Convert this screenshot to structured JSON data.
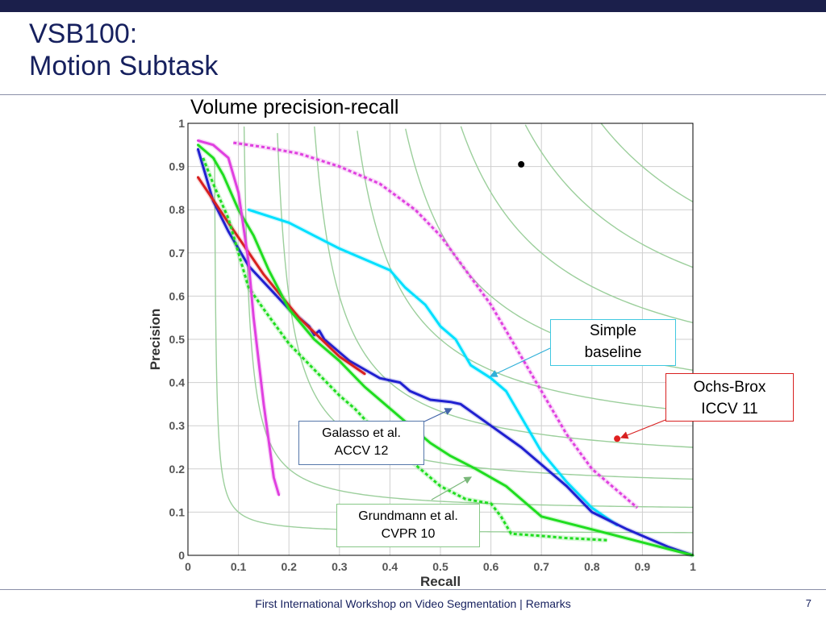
{
  "slide": {
    "title_line1": "VSB100:",
    "title_line2": "Motion Subtask",
    "footer_text": "First International Workshop on Video Segmentation |  Remarks",
    "page_number": "7",
    "colors": {
      "title": "#16205e",
      "topbar": "#1b1f4b"
    }
  },
  "chart_data": {
    "type": "line",
    "title": "Volume precision-recall",
    "xlabel": "Recall",
    "ylabel": "Precision",
    "xlim": [
      0,
      1
    ],
    "ylim": [
      0,
      1
    ],
    "grid": true,
    "xticks": [
      "0",
      "0.1",
      "0.2",
      "0.3",
      "0.4",
      "0.5",
      "0.6",
      "0.7",
      "0.8",
      "0.9",
      "1"
    ],
    "yticks": [
      "0",
      "0.1",
      "0.2",
      "0.3",
      "0.4",
      "0.5",
      "0.6",
      "0.7",
      "0.8",
      "0.9",
      "1"
    ],
    "iso_f_curves": [
      0.1,
      0.2,
      0.3,
      0.4,
      0.5,
      0.6,
      0.7,
      0.8,
      0.9
    ],
    "iso_f_color": "#9ccf9c",
    "series": [
      {
        "color": "#e040e0",
        "dashed": true,
        "x": [
          0.09,
          0.15,
          0.22,
          0.3,
          0.38,
          0.45,
          0.5,
          0.55,
          0.6,
          0.65,
          0.7,
          0.75,
          0.8,
          0.85,
          0.89
        ],
        "y": [
          0.955,
          0.945,
          0.93,
          0.9,
          0.86,
          0.8,
          0.74,
          0.66,
          0.58,
          0.48,
          0.38,
          0.28,
          0.2,
          0.15,
          0.11
        ]
      },
      {
        "color": "#00e0ff",
        "x": [
          0.12,
          0.2,
          0.25,
          0.3,
          0.36,
          0.4,
          0.43,
          0.47,
          0.5,
          0.53,
          0.56,
          0.6,
          0.63,
          0.66,
          0.7,
          0.75,
          0.8,
          0.85
        ],
        "y": [
          0.8,
          0.77,
          0.74,
          0.71,
          0.68,
          0.66,
          0.62,
          0.58,
          0.53,
          0.5,
          0.44,
          0.41,
          0.38,
          0.32,
          0.24,
          0.17,
          0.11,
          0.07
        ]
      },
      {
        "color": "#2020d0",
        "x": [
          0.02,
          0.05,
          0.08,
          0.12,
          0.16,
          0.2,
          0.24,
          0.25,
          0.26,
          0.27,
          0.28,
          0.3,
          0.32,
          0.35,
          0.38,
          0.42,
          0.44,
          0.48,
          0.52,
          0.54,
          0.6,
          0.66,
          0.7,
          0.75,
          0.8,
          0.87,
          0.95,
          1.0
        ],
        "y": [
          0.94,
          0.82,
          0.75,
          0.67,
          0.62,
          0.57,
          0.53,
          0.51,
          0.52,
          0.5,
          0.49,
          0.47,
          0.45,
          0.43,
          0.41,
          0.4,
          0.38,
          0.36,
          0.355,
          0.35,
          0.3,
          0.25,
          0.21,
          0.16,
          0.1,
          0.06,
          0.02,
          0.0
        ]
      },
      {
        "color": "#d82020",
        "x": [
          0.02,
          0.08,
          0.15,
          0.22,
          0.3,
          0.35
        ],
        "y": [
          0.875,
          0.77,
          0.65,
          0.55,
          0.46,
          0.42
        ]
      },
      {
        "color": "#20dd20",
        "x": [
          0.02,
          0.05,
          0.07,
          0.1,
          0.13,
          0.16,
          0.2,
          0.25,
          0.3,
          0.35,
          0.4,
          0.45,
          0.48,
          0.52,
          0.57,
          0.63,
          0.7,
          0.8,
          0.9,
          1.0
        ],
        "y": [
          0.95,
          0.92,
          0.88,
          0.8,
          0.74,
          0.66,
          0.57,
          0.5,
          0.45,
          0.39,
          0.34,
          0.29,
          0.26,
          0.23,
          0.2,
          0.16,
          0.09,
          0.06,
          0.03,
          0.0
        ]
      },
      {
        "color": "#20dd20",
        "dashed": true,
        "x": [
          0.03,
          0.05,
          0.08,
          0.1,
          0.12,
          0.15,
          0.2,
          0.25,
          0.3,
          0.33,
          0.37,
          0.41,
          0.46,
          0.5,
          0.55,
          0.6,
          0.62,
          0.64,
          0.7,
          0.75,
          0.83
        ],
        "y": [
          0.92,
          0.86,
          0.78,
          0.7,
          0.62,
          0.57,
          0.49,
          0.43,
          0.37,
          0.34,
          0.29,
          0.25,
          0.2,
          0.16,
          0.13,
          0.12,
          0.09,
          0.05,
          0.045,
          0.04,
          0.035
        ]
      },
      {
        "color": "#e040e0",
        "x": [
          0.02,
          0.05,
          0.08,
          0.1,
          0.12,
          0.13,
          0.15,
          0.17,
          0.18
        ],
        "y": [
          0.96,
          0.95,
          0.92,
          0.84,
          0.68,
          0.55,
          0.35,
          0.18,
          0.14
        ]
      }
    ],
    "points": [
      {
        "x": 0.66,
        "y": 0.905,
        "color": "#000000"
      },
      {
        "x": 0.85,
        "y": 0.27,
        "color": "#e02020"
      }
    ],
    "annotations": [
      {
        "lines": [
          "Simple",
          "baseline"
        ],
        "border": "#40c8e0"
      },
      {
        "lines": [
          "Ochs-Brox",
          "ICCV 11"
        ],
        "border": "#d82020"
      },
      {
        "lines": [
          "Galasso  et al.",
          "ACCV 12"
        ],
        "border": "#5577aa"
      },
      {
        "lines": [
          "Grundmann  et al.",
          "CVPR 10"
        ],
        "border": "#88c888"
      }
    ]
  }
}
